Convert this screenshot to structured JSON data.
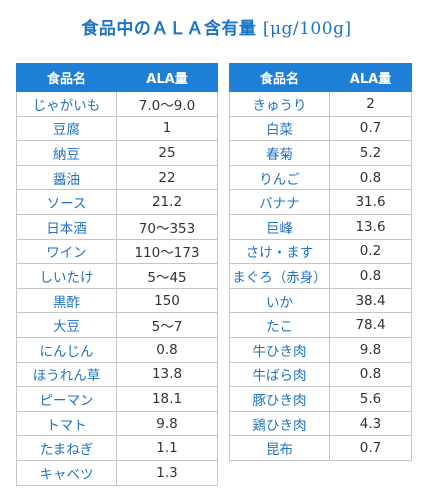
{
  "title": {
    "main": "食品中のＡＬＡ含有量",
    "unit": "[μg/100g]"
  },
  "colors": {
    "title": "#1c74c4",
    "header_bg": "#1e7fd6",
    "food_text": "#1f72c6"
  },
  "tables": [
    {
      "headers": {
        "food": "食品名",
        "value": "ALA量"
      },
      "rows": [
        {
          "food": "じゃがいも",
          "value": "7.0～9.0"
        },
        {
          "food": "豆腐",
          "value": "1"
        },
        {
          "food": "納豆",
          "value": "25"
        },
        {
          "food": "醤油",
          "value": "22"
        },
        {
          "food": "ソース",
          "value": "21.2"
        },
        {
          "food": "日本酒",
          "value": "70～353"
        },
        {
          "food": "ワイン",
          "value": "110～173"
        },
        {
          "food": "しいたけ",
          "value": "5～45"
        },
        {
          "food": "黒酢",
          "value": "150"
        },
        {
          "food": "大豆",
          "value": "5～7"
        },
        {
          "food": "にんじん",
          "value": "0.8"
        },
        {
          "food": "ほうれん草",
          "value": "13.8"
        },
        {
          "food": "ピーマン",
          "value": "18.1"
        },
        {
          "food": "トマト",
          "value": "9.8"
        },
        {
          "food": "たまねぎ",
          "value": "1.1"
        },
        {
          "food": "キャベツ",
          "value": "1.3"
        }
      ]
    },
    {
      "headers": {
        "food": "食品名",
        "value": "ALA量"
      },
      "rows": [
        {
          "food": "きゅうり",
          "value": "2"
        },
        {
          "food": "白菜",
          "value": "0.7"
        },
        {
          "food": "春菊",
          "value": "5.2"
        },
        {
          "food": "りんご",
          "value": "0.8"
        },
        {
          "food": "バナナ",
          "value": "31.6"
        },
        {
          "food": "巨峰",
          "value": "13.6"
        },
        {
          "food": "さけ・ます",
          "value": "0.2"
        },
        {
          "food": "まぐろ（赤身）",
          "value": "0.8"
        },
        {
          "food": "いか",
          "value": "38.4"
        },
        {
          "food": "たこ",
          "value": "78.4"
        },
        {
          "food": "牛ひき肉",
          "value": "9.8"
        },
        {
          "food": "牛ばら肉",
          "value": "0.8"
        },
        {
          "food": "豚ひき肉",
          "value": "5.6"
        },
        {
          "food": "鶏ひき肉",
          "value": "4.3"
        },
        {
          "food": "昆布",
          "value": "0.7"
        }
      ]
    }
  ]
}
